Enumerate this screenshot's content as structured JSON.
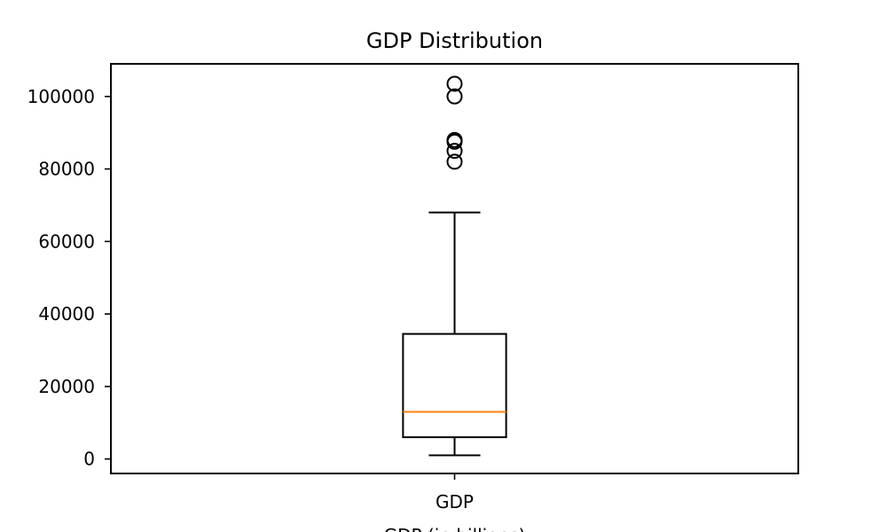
{
  "chart_data": {
    "type": "box",
    "title": "GDP Distribution",
    "xlabel": "GDP (in billions)",
    "ylabel": "",
    "categories": [
      "GDP"
    ],
    "ylim": [
      -4000,
      109000
    ],
    "yticks": [
      0,
      20000,
      40000,
      60000,
      80000,
      100000
    ],
    "ytick_labels": [
      "0",
      "20000",
      "40000",
      "60000",
      "80000",
      "100000"
    ],
    "boxes": [
      {
        "name": "GDP",
        "whisker_low": 1000,
        "q1": 6000,
        "median": 13000,
        "q3": 34500,
        "whisker_high": 68000,
        "outliers": [
          82000,
          85000,
          87500,
          88000,
          100000,
          103500
        ]
      }
    ],
    "grid": false,
    "legend": "none",
    "colors": {
      "box": "#000000",
      "median": "#ff7f0e",
      "outlier": "#000000"
    }
  }
}
